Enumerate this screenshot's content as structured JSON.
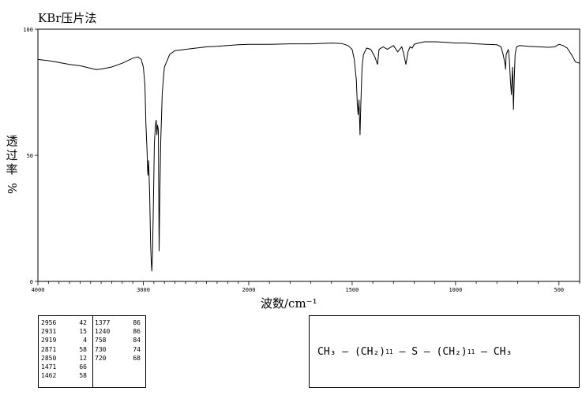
{
  "method": "KBr压片法",
  "ylabel": {
    "text": "透过率",
    "unit": "%"
  },
  "xlabel": "波数/cm⁻¹",
  "peak_table": {
    "col1": [
      [
        "2956",
        "42"
      ],
      [
        "2931",
        "15"
      ],
      [
        "2919",
        "4"
      ],
      [
        "2871",
        "58"
      ],
      [
        "2850",
        "12"
      ],
      [
        "1471",
        "66"
      ],
      [
        "1462",
        "58"
      ]
    ],
    "col2": [
      [
        "1377",
        "86"
      ],
      [
        "1240",
        "86"
      ],
      [
        "758",
        "84"
      ],
      [
        "730",
        "74"
      ],
      [
        "720",
        "68"
      ]
    ]
  },
  "formula": {
    "part1": "CH₃",
    "part2": "(CH₂)",
    "n1": "11",
    "sulfur": "S",
    "part3": "(CH₂)",
    "n2": "11",
    "part4": "CH₃"
  },
  "chart_data": {
    "type": "line",
    "xlabel": "波数/cm⁻¹",
    "ylabel": "透过率 %",
    "xlim": [
      4000,
      400
    ],
    "ylim": [
      0,
      100
    ],
    "x_major_ticks": [
      4000,
      3000,
      2000,
      1500,
      1000,
      500
    ],
    "x_tick_labels": [
      "4000",
      "3000",
      "2000",
      "1500",
      "1000",
      "500"
    ],
    "y_ticks": [
      0,
      50,
      100
    ],
    "y_tick_labels": [
      "0",
      "50",
      "100"
    ],
    "grid": false,
    "series": [
      {
        "x": [
          4000,
          3900,
          3800,
          3700,
          3600,
          3500,
          3450,
          3400,
          3300,
          3200,
          3100,
          3050,
          3020,
          3000,
          2985,
          2975,
          2965,
          2960,
          2956,
          2950,
          2940,
          2931,
          2925,
          2919,
          2912,
          2905,
          2895,
          2885,
          2878,
          2871,
          2865,
          2858,
          2850,
          2845,
          2835,
          2820,
          2800,
          2750,
          2700,
          2600,
          2500,
          2400,
          2300,
          2200,
          2100,
          2000,
          1900,
          1800,
          1700,
          1600,
          1550,
          1520,
          1500,
          1490,
          1480,
          1475,
          1471,
          1467,
          1462,
          1458,
          1452,
          1445,
          1430,
          1410,
          1390,
          1377,
          1370,
          1350,
          1330,
          1300,
          1280,
          1260,
          1250,
          1240,
          1230,
          1220,
          1210,
          1200,
          1180,
          1150,
          1100,
          1050,
          1000,
          950,
          900,
          850,
          800,
          780,
          770,
          765,
          760,
          758,
          755,
          745,
          740,
          735,
          730,
          727,
          724,
          720,
          716,
          712,
          705,
          690,
          650,
          600,
          550,
          520,
          500,
          480,
          460,
          440,
          420,
          400
        ],
        "y": [
          88,
          87.5,
          86.8,
          86,
          85.5,
          84.5,
          84,
          84.2,
          85,
          86.5,
          88.5,
          89,
          88,
          85,
          78,
          62,
          52,
          45,
          42,
          48,
          35,
          15,
          8,
          4,
          12,
          30,
          55,
          62,
          64,
          58,
          62,
          60,
          12,
          30,
          55,
          75,
          85,
          90,
          91.5,
          92,
          92.5,
          93,
          93.2,
          93.5,
          93.8,
          94,
          94,
          94.2,
          94.2,
          94.5,
          94.3,
          93.5,
          92,
          88,
          80,
          70,
          66,
          72,
          58,
          70,
          85,
          90,
          92.5,
          92,
          89,
          86,
          92,
          93,
          92,
          93.5,
          91,
          93,
          90,
          86,
          91,
          93,
          92.5,
          94,
          94.5,
          95,
          95,
          94.8,
          94.5,
          94.5,
          94.2,
          94,
          93.8,
          93,
          90,
          88,
          86,
          84,
          90,
          92,
          88,
          80,
          74,
          80,
          85,
          68,
          80,
          90,
          93,
          93.5,
          93.2,
          93,
          92.8,
          93,
          94,
          93.5,
          92.5,
          90,
          87,
          86.5
        ]
      }
    ]
  }
}
